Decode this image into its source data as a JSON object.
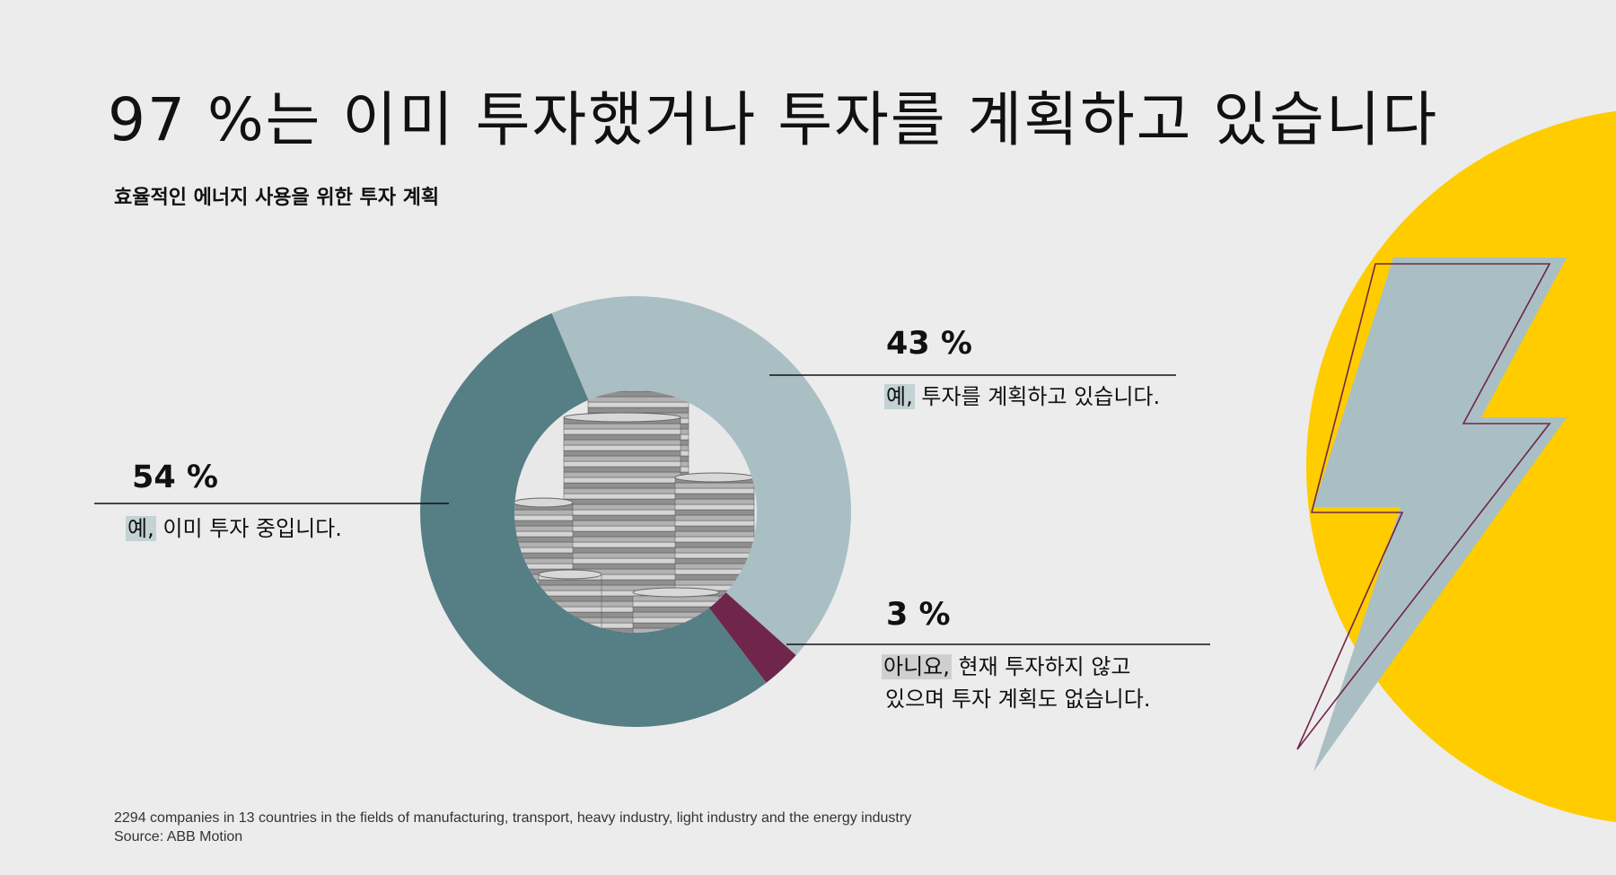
{
  "title": "97 %는 이미 투자했거나 투자를 계획하고 있습니다",
  "subtitle": "효율적인 에너지 사용을 위한 투자 계획",
  "chart_data": {
    "type": "pie",
    "categories": [
      "예, 이미 투자 중입니다.",
      "예, 투자를 계획하고 있습니다.",
      "아니요, 현재 투자하지 않고 있으며 투자 계획도 없습니다."
    ],
    "values": [
      54,
      43,
      3
    ],
    "unit": "%",
    "slices": [
      {
        "value": 54,
        "label": "54 %",
        "emph": "예,",
        "text": "이미 투자 중입니다.",
        "text2": "",
        "color": "#557f84"
      },
      {
        "value": 43,
        "label": "43 %",
        "emph": "예,",
        "text": "투자를 계획하고 있습니다.",
        "text2": "",
        "color": "#a9bfc3"
      },
      {
        "value": 3,
        "label": "3 %",
        "emph": "아니요,",
        "text": "현재 투자하지 않고",
        "text2": "있으며 투자 계획도 없습니다.",
        "color": "#70254a"
      }
    ]
  },
  "footer": {
    "line1": "2294 companies in 13 countries in the fields of manufacturing, transport, heavy industry, light industry and the energy industry",
    "line2": "Source: ABB Motion"
  },
  "colors": {
    "background": "#ececec",
    "sun": "#ffcc00",
    "bolt": "#a9bfc3",
    "bolt_outline": "#70254a",
    "leader_line": "#111111"
  },
  "icons": [
    "lightning-bolt-icon",
    "sun-circle",
    "coin-stack-image"
  ]
}
